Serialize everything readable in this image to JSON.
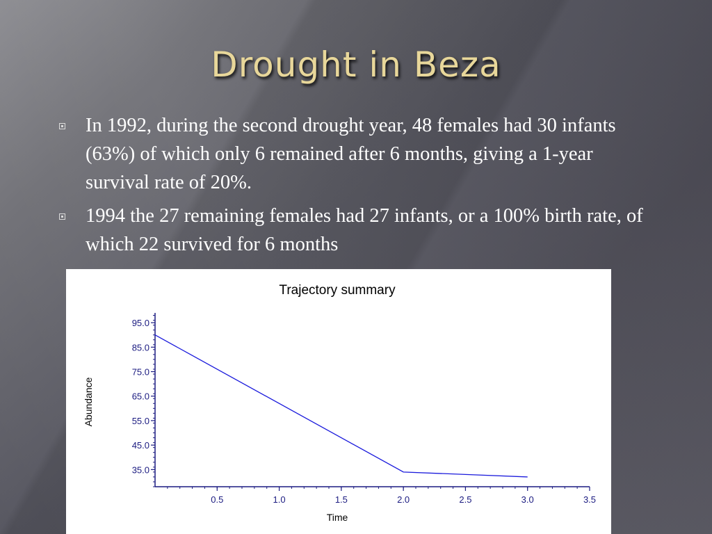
{
  "slide": {
    "title": "Drought in Beza",
    "bullets": [
      {
        "text": "In 1992, during the second drought year, 48 females had 30 infants (63%) of which only 6 remained after 6 months, giving a 1-year survival rate of 20%."
      },
      {
        "text": "1994 the 27 remaining females had 27 infants, or a 100% birth rate, of which 22 survived for 6 months"
      }
    ]
  },
  "colors": {
    "title": "#e8d79a",
    "line": "#1a1adc",
    "axis": "#1a1a80"
  },
  "chart_data": {
    "type": "line",
    "title": "Trajectory summary",
    "xlabel": "Time",
    "ylabel": "Abundance",
    "xlim": [
      0,
      3.5
    ],
    "ylim": [
      28,
      99
    ],
    "xticks": [
      "0.5",
      "1.0",
      "1.5",
      "2.0",
      "2.5",
      "3.0",
      "3.5"
    ],
    "yticks": [
      "95.0",
      "85.0",
      "75.0",
      "65.0",
      "55.0",
      "45.0",
      "35.0"
    ],
    "x": [
      0,
      2.0,
      2.5,
      3.0
    ],
    "series": [
      {
        "values": [
          90,
          34,
          33,
          32
        ]
      }
    ]
  }
}
